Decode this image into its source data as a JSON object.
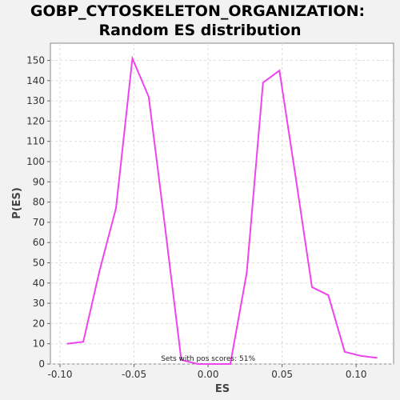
{
  "chart_data": {
    "type": "line",
    "title_line1": "GOBP_CYTOSKELETON_ORGANIZATION:",
    "title_line2": "Random ES distribution",
    "xlabel": "ES",
    "ylabel": "P(ES)",
    "xlim": [
      -0.1065,
      0.1253
    ],
    "ylim": [
      0,
      158.5
    ],
    "x_ticks": [
      -0.1,
      -0.05,
      0.0,
      0.05,
      0.1
    ],
    "x_tick_labels": [
      "-0.10",
      "-0.05",
      "0.00",
      "0.05",
      "0.10"
    ],
    "y_ticks": [
      0,
      10,
      20,
      30,
      40,
      50,
      60,
      70,
      80,
      90,
      100,
      110,
      120,
      130,
      140,
      150
    ],
    "y_tick_labels": [
      "0",
      "10",
      "20",
      "30",
      "40",
      "50",
      "60",
      "70",
      "80",
      "90",
      "100",
      "110",
      "120",
      "130",
      "140",
      "150"
    ],
    "grid": true,
    "line_color": "#ee44ee",
    "annotation": "Sets with pos scores: 51%",
    "annotation_x": 0.0,
    "annotation_y": 1.5,
    "series": [
      {
        "x": [
          -0.0953,
          -0.0843,
          -0.0733,
          -0.0622,
          -0.0511,
          -0.0401,
          -0.0291,
          -0.0181,
          -0.007,
          0.004,
          0.015,
          0.0261,
          0.0371,
          0.0482,
          0.0592,
          0.0702,
          0.0812,
          0.0923,
          0.1033,
          0.1143
        ],
        "y": [
          10,
          11,
          46,
          77,
          151,
          132,
          68,
          2,
          0,
          0,
          0,
          45,
          139,
          145,
          92,
          38,
          34,
          6,
          4,
          3
        ]
      }
    ]
  }
}
